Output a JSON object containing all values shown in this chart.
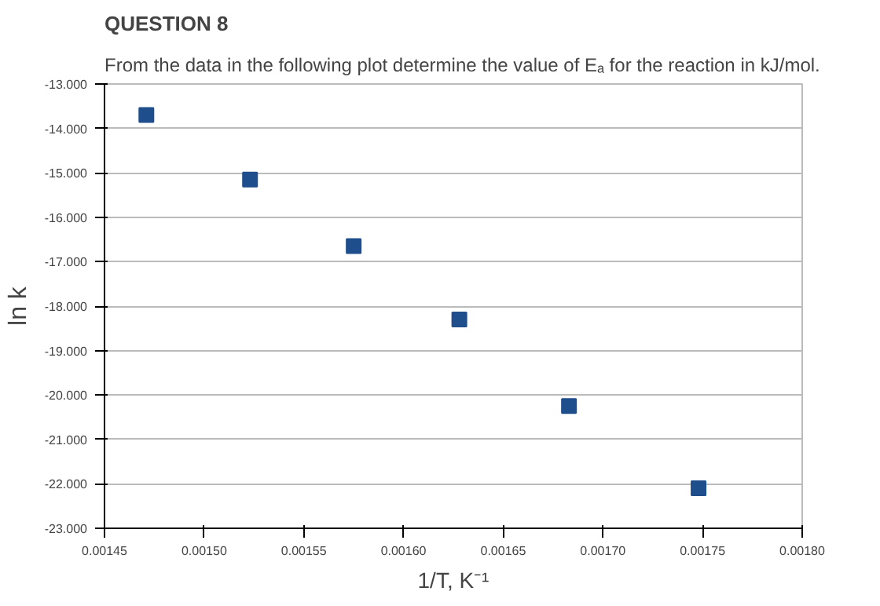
{
  "chart_data": {
    "type": "scatter",
    "title": "QUESTION 8",
    "subtitle": "From the data in the following plot determine the value of Eₐ for the reaction in kJ/mol.",
    "xlabel": "1/T, K⁻¹",
    "ylabel": "ln k",
    "x": [
      0.001471,
      0.001523,
      0.001575,
      0.001628,
      0.001683,
      0.001748
    ],
    "values": [
      -13.7,
      -15.15,
      -16.65,
      -18.3,
      -20.25,
      -22.1
    ],
    "color": "#1f4e8c",
    "marker": "square",
    "grid": "y",
    "xlim": [
      0.00145,
      0.0018
    ],
    "xticks": [
      0.00145,
      {
        "value": 0.0015,
        "label": "0.00150"
      },
      0.00155,
      {
        "value": 0.0016,
        "label": "0.00160"
      },
      0.00165,
      {
        "value": 0.0017,
        "label": "0.00170"
      },
      0.00175,
      {
        "value": 0.0018,
        "label": "0.00180"
      }
    ],
    "ylim": [
      -23,
      -13
    ],
    "yticks": [
      {
        "value": -13,
        "label": "-13.000"
      },
      {
        "value": -14,
        "label": "-14.000"
      },
      {
        "value": -15,
        "label": "-15.000"
      },
      {
        "value": -16,
        "label": "-16.000"
      },
      {
        "value": -17,
        "label": "-17.000"
      },
      {
        "value": -18,
        "label": "-18.000"
      },
      {
        "value": -19,
        "label": "-19.000"
      },
      {
        "value": -20,
        "label": "-20.000"
      },
      {
        "value": -21,
        "label": "-21.000"
      },
      {
        "value": -22,
        "label": "-22.000"
      },
      {
        "value": -23,
        "label": "-23.000"
      }
    ]
  }
}
